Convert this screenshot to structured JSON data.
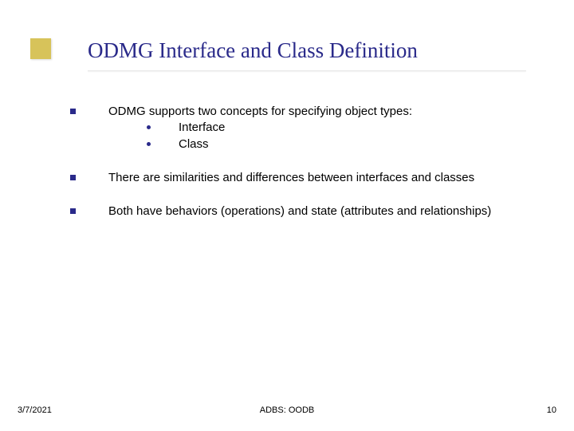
{
  "accent_color": "#d7c35a",
  "bullet_color": "#2a2a8a",
  "title_color": "#2a2a8a",
  "title": "ODMG Interface and Class Definition",
  "bullets": [
    {
      "text": "ODMG supports two concepts for specifying object types:",
      "sub": [
        "Interface",
        "Class"
      ]
    },
    {
      "text": "There are similarities and differences between interfaces and classes",
      "sub": []
    },
    {
      "text": "Both have behaviors (operations) and state (attributes and relationships)",
      "sub": []
    }
  ],
  "footer": {
    "date": "3/7/2021",
    "center": "ADBS: OODB",
    "page": "10"
  }
}
